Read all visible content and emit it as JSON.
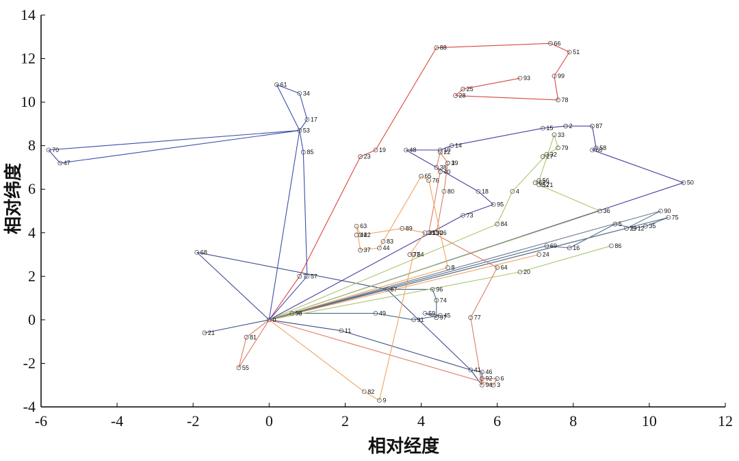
{
  "chart_data": {
    "type": "line",
    "xlabel": "相对经度",
    "ylabel": "相对纬度",
    "xlim": [
      -6,
      12
    ],
    "ylim": [
      -4,
      14
    ],
    "xticks": [
      "-6",
      "-4",
      "-2",
      "0",
      "2",
      "4",
      "6",
      "8",
      "10",
      "12"
    ],
    "yticks": [
      "-4",
      "-2",
      "0",
      "2",
      "4",
      "6",
      "8",
      "10",
      "12",
      "14"
    ],
    "grid": false,
    "nodes": [
      {
        "id": "0",
        "x": 0,
        "y": 0
      },
      {
        "id": "1",
        "x": 4.7,
        "y": 7.2
      },
      {
        "id": "2",
        "x": 7.8,
        "y": 8.9
      },
      {
        "id": "3",
        "x": 5.9,
        "y": -3.0
      },
      {
        "id": "4",
        "x": 6.4,
        "y": 5.9
      },
      {
        "id": "5",
        "x": 9.1,
        "y": 4.4
      },
      {
        "id": "6",
        "x": 6.0,
        "y": -2.7
      },
      {
        "id": "7",
        "x": 0.8,
        "y": 2.0
      },
      {
        "id": "8",
        "x": 4.7,
        "y": 2.4
      },
      {
        "id": "9",
        "x": 2.9,
        "y": -3.7
      },
      {
        "id": "10",
        "x": 4.5,
        "y": 7.8
      },
      {
        "id": "11",
        "x": 1.9,
        "y": -0.5
      },
      {
        "id": "12",
        "x": 9.6,
        "y": 4.2
      },
      {
        "id": "13",
        "x": 4.2,
        "y": 4.0
      },
      {
        "id": "14",
        "x": 4.8,
        "y": 8.0
      },
      {
        "id": "15",
        "x": 7.2,
        "y": 8.8
      },
      {
        "id": "16",
        "x": 7.9,
        "y": 3.3
      },
      {
        "id": "17",
        "x": 1.0,
        "y": 9.2
      },
      {
        "id": "18",
        "x": 5.5,
        "y": 5.9
      },
      {
        "id": "19",
        "x": 2.8,
        "y": 7.8
      },
      {
        "id": "20",
        "x": 6.6,
        "y": 2.2
      },
      {
        "id": "21",
        "x": -1.7,
        "y": -0.6
      },
      {
        "id": "22",
        "x": 4.5,
        "y": 7.7
      },
      {
        "id": "23",
        "x": 2.4,
        "y": 7.5
      },
      {
        "id": "24",
        "x": 7.1,
        "y": 3.0
      },
      {
        "id": "25",
        "x": 5.1,
        "y": 10.6
      },
      {
        "id": "26",
        "x": 4.4,
        "y": 4.0
      },
      {
        "id": "27",
        "x": 7.2,
        "y": 7.5
      },
      {
        "id": "28",
        "x": 4.9,
        "y": 10.3
      },
      {
        "id": "29",
        "x": 9.4,
        "y": 4.2
      },
      {
        "id": "30",
        "x": 4.3,
        "y": 4.0
      },
      {
        "id": "31",
        "x": 4.1,
        "y": 4.0
      },
      {
        "id": "32",
        "x": 7.3,
        "y": 7.6
      },
      {
        "id": "33",
        "x": 7.5,
        "y": 8.5
      },
      {
        "id": "34",
        "x": 0.8,
        "y": 10.4
      },
      {
        "id": "35",
        "x": 9.9,
        "y": 4.3
      },
      {
        "id": "36",
        "x": 8.7,
        "y": 5.0
      },
      {
        "id": "37",
        "x": 2.4,
        "y": 3.2
      },
      {
        "id": "38",
        "x": 4.4,
        "y": 7.0
      },
      {
        "id": "39",
        "x": 4.7,
        "y": 7.2
      },
      {
        "id": "40",
        "x": 4.5,
        "y": 6.8
      },
      {
        "id": "41",
        "x": 5.3,
        "y": -2.3
      },
      {
        "id": "42",
        "x": 2.4,
        "y": 3.9
      },
      {
        "id": "43",
        "x": 2.3,
        "y": 3.9
      },
      {
        "id": "44",
        "x": 2.9,
        "y": 3.3
      },
      {
        "id": "45",
        "x": 4.5,
        "y": 0.2
      },
      {
        "id": "46",
        "x": 5.6,
        "y": -2.4
      },
      {
        "id": "47",
        "x": -5.5,
        "y": 7.2
      },
      {
        "id": "48",
        "x": 3.6,
        "y": 7.8
      },
      {
        "id": "49",
        "x": 2.8,
        "y": 0.3
      },
      {
        "id": "50",
        "x": 10.9,
        "y": 6.3
      },
      {
        "id": "51",
        "x": 7.9,
        "y": 12.3
      },
      {
        "id": "52",
        "x": 7.1,
        "y": 6.2
      },
      {
        "id": "53",
        "x": 0.8,
        "y": 8.7
      },
      {
        "id": "54",
        "x": 3.8,
        "y": 3.0
      },
      {
        "id": "55",
        "x": -0.8,
        "y": -2.2
      },
      {
        "id": "56",
        "x": 7.1,
        "y": 6.4
      },
      {
        "id": "57",
        "x": 1.0,
        "y": 2.0
      },
      {
        "id": "58",
        "x": 8.6,
        "y": 7.9
      },
      {
        "id": "59",
        "x": 4.1,
        "y": 0.3
      },
      {
        "id": "60",
        "x": 8.5,
        "y": 7.8
      },
      {
        "id": "61",
        "x": 0.2,
        "y": 10.8
      },
      {
        "id": "62",
        "x": 7.0,
        "y": 6.3
      },
      {
        "id": "63",
        "x": 2.3,
        "y": 4.3
      },
      {
        "id": "64",
        "x": 6.0,
        "y": 2.4
      },
      {
        "id": "65",
        "x": 4.0,
        "y": 6.6
      },
      {
        "id": "66",
        "x": 7.4,
        "y": 12.7
      },
      {
        "id": "67",
        "x": 3.1,
        "y": 1.4
      },
      {
        "id": "68",
        "x": -1.9,
        "y": 3.1
      },
      {
        "id": "69",
        "x": 7.3,
        "y": 3.4
      },
      {
        "id": "70",
        "x": -5.8,
        "y": 7.8
      },
      {
        "id": "71",
        "x": 7.2,
        "y": 6.2
      },
      {
        "id": "72",
        "x": 3.7,
        "y": 3.0
      },
      {
        "id": "73",
        "x": 5.1,
        "y": 4.8
      },
      {
        "id": "74",
        "x": 4.4,
        "y": 0.9
      },
      {
        "id": "75",
        "x": 10.5,
        "y": 4.7
      },
      {
        "id": "76",
        "x": 4.2,
        "y": 6.4
      },
      {
        "id": "77",
        "x": 5.3,
        "y": 0.1
      },
      {
        "id": "78",
        "x": 7.6,
        "y": 10.1
      },
      {
        "id": "79",
        "x": 7.6,
        "y": 7.9
      },
      {
        "id": "80",
        "x": 4.6,
        "y": 5.9
      },
      {
        "id": "81",
        "x": -0.6,
        "y": -0.8
      },
      {
        "id": "82",
        "x": 2.5,
        "y": -3.3
      },
      {
        "id": "83",
        "x": 3.0,
        "y": 3.6
      },
      {
        "id": "84",
        "x": 6.0,
        "y": 4.4
      },
      {
        "id": "85",
        "x": 0.9,
        "y": 7.7
      },
      {
        "id": "86",
        "x": 9.0,
        "y": 3.4
      },
      {
        "id": "87",
        "x": 8.5,
        "y": 8.9
      },
      {
        "id": "88",
        "x": 4.4,
        "y": 12.5
      },
      {
        "id": "89",
        "x": 3.5,
        "y": 4.2
      },
      {
        "id": "90",
        "x": 10.3,
        "y": 5.0
      },
      {
        "id": "91",
        "x": 3.8,
        "y": 0.0
      },
      {
        "id": "92",
        "x": 5.6,
        "y": -2.7
      },
      {
        "id": "93",
        "x": 6.6,
        "y": 11.1
      },
      {
        "id": "94",
        "x": 5.6,
        "y": -3.0
      },
      {
        "id": "95",
        "x": 5.9,
        "y": 5.3
      },
      {
        "id": "96",
        "x": 4.3,
        "y": 1.4
      },
      {
        "id": "97",
        "x": 4.4,
        "y": 0.1
      },
      {
        "id": "98",
        "x": 0.6,
        "y": 0.3
      },
      {
        "id": "99",
        "x": 7.5,
        "y": 11.2
      }
    ],
    "routes": [
      {
        "color": "#d9463b",
        "path": [
          "0",
          "7",
          "23",
          "19",
          "88",
          "66",
          "51",
          "99",
          "78",
          "28",
          "25",
          "93",
          "25",
          "28"
        ]
      },
      {
        "color": "#3a4dab",
        "path": [
          "0",
          "53",
          "61",
          "34",
          "17",
          "53",
          "70",
          "47",
          "53",
          "85",
          "57",
          "0"
        ]
      },
      {
        "color": "#4a3aa0",
        "path": [
          "0",
          "73",
          "95",
          "18",
          "48",
          "10",
          "14",
          "15",
          "2",
          "87",
          "58",
          "60",
          "50",
          "0"
        ]
      },
      {
        "color": "#3c4d8a",
        "path": [
          "0",
          "21",
          "0",
          "68",
          "67",
          "41",
          "94",
          "46",
          "41",
          "11",
          "0"
        ]
      },
      {
        "color": "#4b6a8a",
        "path": [
          "0",
          "98",
          "49",
          "91",
          "45",
          "59",
          "97",
          "74",
          "96",
          "67",
          "0",
          "69",
          "16",
          "5",
          "12",
          "35",
          "75",
          "0"
        ]
      },
      {
        "color": "#a8c66b",
        "path": [
          "0",
          "84",
          "4",
          "32",
          "27",
          "79",
          "33",
          "56",
          "62",
          "71",
          "52",
          "36",
          "0",
          "20",
          "86"
        ]
      },
      {
        "color": "#e07a5f",
        "path": [
          "0",
          "55",
          "81",
          "0",
          "3",
          "6",
          "92",
          "94",
          "77",
          "64",
          "30",
          "13",
          "40",
          "38",
          "22",
          "1",
          "39",
          "80",
          "26"
        ]
      },
      {
        "color": "#f0a35e",
        "path": [
          "0",
          "82",
          "9",
          "54",
          "72",
          "31",
          "89",
          "42",
          "63",
          "37",
          "44",
          "83",
          "65",
          "76",
          "8",
          "0",
          "24"
        ]
      },
      {
        "color": "#6a7a8f",
        "path": [
          "0",
          "90",
          "29",
          "0"
        ]
      }
    ]
  }
}
